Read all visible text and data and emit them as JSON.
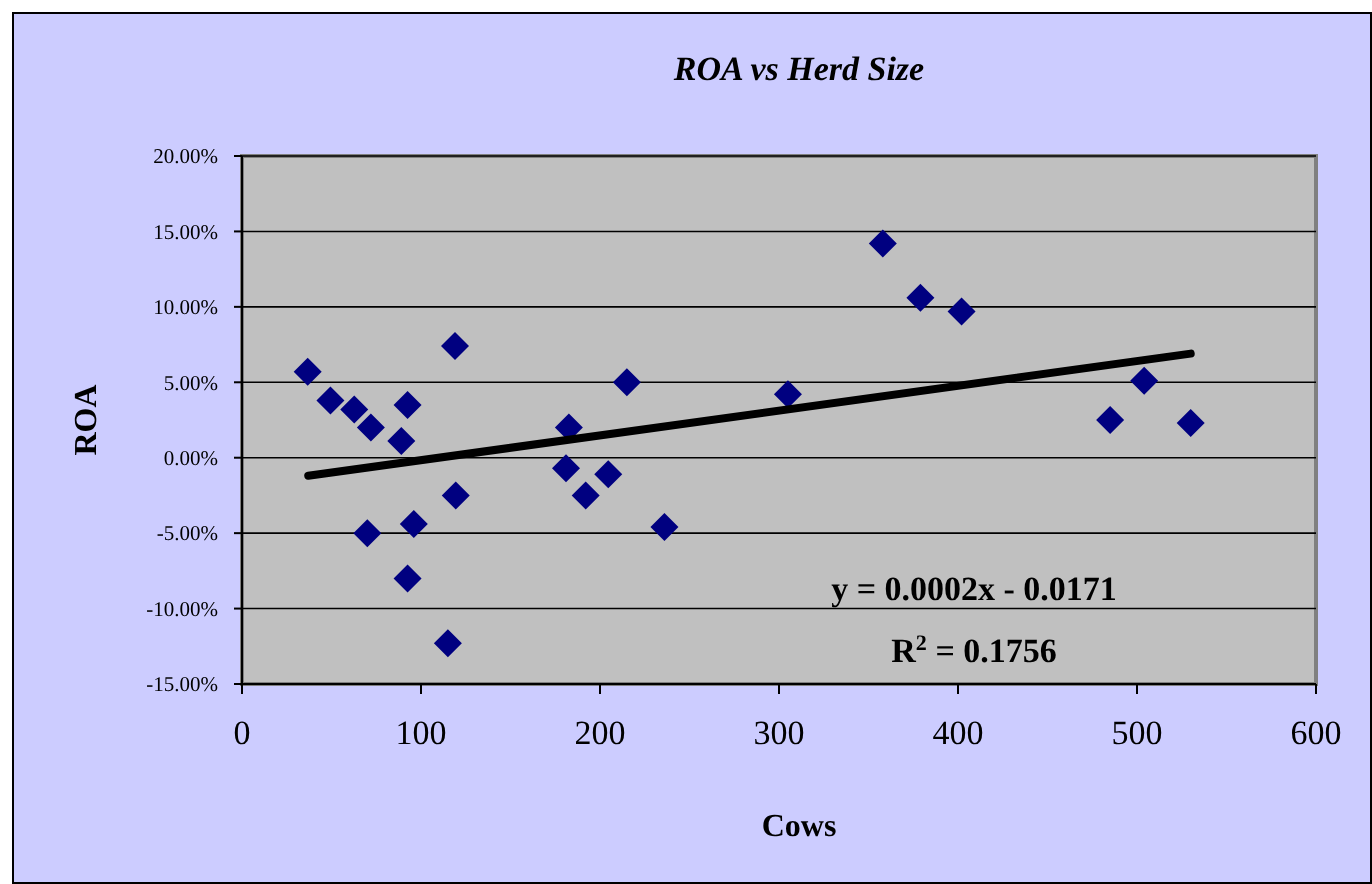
{
  "chart_data": {
    "type": "scatter",
    "title": "ROA vs Herd Size",
    "xlabel": "Cows",
    "ylabel": "ROA",
    "xlim": [
      0,
      600
    ],
    "xticks": [
      0,
      100,
      200,
      300,
      400,
      500,
      600
    ],
    "ylim": [
      -15,
      20
    ],
    "yticks": [
      {
        "value": -15,
        "label": "-15.00%"
      },
      {
        "value": -10,
        "label": "-10.00%"
      },
      {
        "value": -5,
        "label": "-5.00%"
      },
      {
        "value": 0,
        "label": "0.00%"
      },
      {
        "value": 5,
        "label": "5.00%"
      },
      {
        "value": 10,
        "label": "10.00%"
      },
      {
        "value": 15,
        "label": "15.00%"
      },
      {
        "value": 20,
        "label": "20.00%"
      }
    ],
    "grid": "y",
    "series": [
      {
        "marker": "diamond",
        "color": "#000080",
        "x": [
          36.7,
          49.4,
          62.7,
          72,
          89,
          92.5,
          70,
          96,
          92.5,
          115,
          119,
          119.4,
          182.6,
          181,
          192,
          204.6,
          215,
          236,
          305,
          358,
          379,
          402,
          485,
          504,
          530
        ],
        "values": [
          5.7,
          3.8,
          3.2,
          2.0,
          1.1,
          3.5,
          -5.0,
          -4.4,
          -8.0,
          -12.3,
          7.4,
          -2.5,
          2.0,
          -0.7,
          -2.5,
          -1.1,
          5.0,
          -4.6,
          4.2,
          14.2,
          10.6,
          9.7,
          2.5,
          5.1,
          2.3
        ]
      },
      {
        "type": "line",
        "marker": "none",
        "color": "#000000",
        "x": [
          37,
          530
        ],
        "values": [
          -1.2,
          6.9
        ]
      }
    ],
    "annotations": [
      "y = 0.0002x - 0.0171",
      "R$^{2}$ = 0.1756"
    ]
  }
}
